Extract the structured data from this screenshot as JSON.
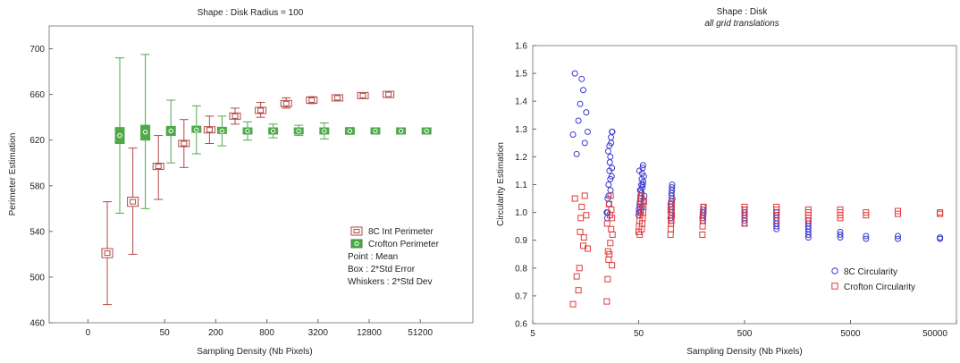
{
  "chart_data": [
    {
      "type": "boxplot",
      "title": "Shape : Disk Radius = 100",
      "xlabel": "Sampling Density (Nb Pixels)",
      "ylabel": "Perimeter Estimation",
      "x_tick_labels": [
        "0",
        "50",
        "200",
        "800",
        "3200",
        "12800",
        "51200"
      ],
      "y_ticks": [
        460,
        500,
        540,
        580,
        620,
        660,
        700
      ],
      "ylim": [
        460,
        720
      ],
      "grid": false,
      "legend_position": "bottom-right",
      "colors": {
        "8C Int Perimeter": "#b04a45",
        "Crofton Perimeter": "#4fa84a"
      },
      "series": [
        {
          "name": "8C Int Perimeter",
          "marker": "square",
          "points": [
            {
              "x": 12.5,
              "mean": 521,
              "se_low": 517,
              "se_high": 525,
              "sd_low": 476,
              "sd_high": 566
            },
            {
              "x": 25,
              "mean": 566,
              "se_low": 562,
              "se_high": 570,
              "sd_low": 520,
              "sd_high": 613
            },
            {
              "x": 50,
              "mean": 597,
              "se_low": 595,
              "se_high": 599,
              "sd_low": 568,
              "sd_high": 624
            },
            {
              "x": 100,
              "mean": 617,
              "se_low": 615,
              "se_high": 619,
              "sd_low": 596,
              "sd_high": 638
            },
            {
              "x": 200,
              "mean": 629,
              "se_low": 627,
              "se_high": 631,
              "sd_low": 617,
              "sd_high": 641
            },
            {
              "x": 400,
              "mean": 641,
              "se_low": 639,
              "se_high": 643,
              "sd_low": 634,
              "sd_high": 648
            },
            {
              "x": 800,
              "mean": 646,
              "se_low": 644,
              "se_high": 648,
              "sd_low": 640,
              "sd_high": 653
            },
            {
              "x": 1600,
              "mean": 652,
              "se_low": 650,
              "se_high": 654,
              "sd_low": 648,
              "sd_high": 657
            },
            {
              "x": 3200,
              "mean": 655,
              "se_low": 654,
              "se_high": 656,
              "sd_low": 652,
              "sd_high": 658
            },
            {
              "x": 6400,
              "mean": 657,
              "se_low": 656,
              "se_high": 658,
              "sd_low": 655,
              "sd_high": 659
            },
            {
              "x": 12800,
              "mean": 659,
              "se_low": 658,
              "se_high": 660,
              "sd_low": 657,
              "sd_high": 660
            },
            {
              "x": 25600,
              "mean": 660,
              "se_low": 659,
              "se_high": 661,
              "sd_low": 659,
              "sd_high": 661
            }
          ]
        },
        {
          "name": "Crofton Perimeter",
          "marker": "circle",
          "points": [
            {
              "x": 12.5,
              "mean": 624,
              "se_low": 617,
              "se_high": 631,
              "sd_low": 556,
              "sd_high": 692
            },
            {
              "x": 25,
              "mean": 627,
              "se_low": 620,
              "se_high": 633,
              "sd_low": 560,
              "sd_high": 695
            },
            {
              "x": 50,
              "mean": 628,
              "se_low": 624,
              "se_high": 632,
              "sd_low": 600,
              "sd_high": 655
            },
            {
              "x": 100,
              "mean": 629,
              "se_low": 627,
              "se_high": 632,
              "sd_low": 608,
              "sd_high": 650
            },
            {
              "x": 200,
              "mean": 628,
              "se_low": 627,
              "se_high": 630,
              "sd_low": 615,
              "sd_high": 641
            },
            {
              "x": 400,
              "mean": 628,
              "se_low": 627,
              "se_high": 629,
              "sd_low": 620,
              "sd_high": 636
            },
            {
              "x": 800,
              "mean": 628,
              "se_low": 627,
              "se_high": 629,
              "sd_low": 622,
              "sd_high": 634
            },
            {
              "x": 1600,
              "mean": 628,
              "se_low": 627,
              "se_high": 629,
              "sd_low": 624,
              "sd_high": 633
            },
            {
              "x": 3200,
              "mean": 628,
              "se_low": 627,
              "se_high": 629,
              "sd_low": 621,
              "sd_high": 635
            },
            {
              "x": 6400,
              "mean": 628,
              "se_low": 627,
              "se_high": 629,
              "sd_low": 625,
              "sd_high": 631
            },
            {
              "x": 12800,
              "mean": 628,
              "se_low": 627.5,
              "se_high": 628.5,
              "sd_low": 626,
              "sd_high": 630
            },
            {
              "x": 25600,
              "mean": 628,
              "se_low": 627.5,
              "se_high": 628.5,
              "sd_low": 627,
              "sd_high": 629
            },
            {
              "x": 51200,
              "mean": 628,
              "se_low": 627.5,
              "se_high": 628.5,
              "sd_low": 627,
              "sd_high": 629
            }
          ]
        }
      ],
      "legend_notes": [
        "Point : Mean",
        "Box : 2*Std Error",
        "Whiskers : 2*Std Dev"
      ]
    },
    {
      "type": "scatter",
      "title": "Shape : Disk",
      "subtitle": "all grid translations",
      "xlabel": "Sampling Density (Nb Pixels)",
      "ylabel": "Circularity Estimation",
      "x_scale": "log",
      "x_ticks": [
        5,
        50,
        500,
        5000,
        50000
      ],
      "xlim": [
        5,
        50000
      ],
      "y_ticks": [
        0.6,
        0.7,
        0.8,
        0.9,
        1.0,
        1.1,
        1.2,
        1.3,
        1.4,
        1.5,
        1.6
      ],
      "ylim": [
        0.6,
        1.6
      ],
      "grid": false,
      "legend_position": "bottom-right",
      "colors": {
        "8C Circularity": "#3a3ad0",
        "Crofton Circularity": "#e03a3a"
      },
      "series": [
        {
          "name": "8C Circularity",
          "marker": "circle",
          "points": [
            [
              12,
              1.28
            ],
            [
              12.5,
              1.5
            ],
            [
              13,
              1.21
            ],
            [
              13.5,
              1.33
            ],
            [
              14,
              1.39
            ],
            [
              14.5,
              1.48
            ],
            [
              15,
              1.44
            ],
            [
              15.5,
              1.25
            ],
            [
              16,
              1.36
            ],
            [
              16.5,
              1.29
            ],
            [
              25,
              1.0
            ],
            [
              25.5,
              1.05
            ],
            [
              26,
              1.1
            ],
            [
              26.5,
              1.15
            ],
            [
              27,
              1.2
            ],
            [
              27.5,
              1.25
            ],
            [
              28,
              1.29
            ],
            [
              25.3,
              0.98
            ],
            [
              26.2,
              1.03
            ],
            [
              27.1,
              1.08
            ],
            [
              27.8,
              1.13
            ],
            [
              26.7,
              1.18
            ],
            [
              25.8,
              1.22
            ],
            [
              27.4,
              1.27
            ],
            [
              28.2,
              1.29
            ],
            [
              26,
              1.06
            ],
            [
              27,
              1.12
            ],
            [
              28,
              1.16
            ],
            [
              25.5,
              1.0
            ],
            [
              26.5,
              1.24
            ],
            [
              50,
              0.99
            ],
            [
              50.5,
              1.0
            ],
            [
              51,
              1.02
            ],
            [
              51.5,
              1.04
            ],
            [
              52,
              1.06
            ],
            [
              52.5,
              1.08
            ],
            [
              53,
              1.1
            ],
            [
              53.5,
              1.12
            ],
            [
              54,
              1.14
            ],
            [
              54.5,
              1.16
            ],
            [
              55,
              1.17
            ],
            [
              50.3,
              1.01
            ],
            [
              51.2,
              1.03
            ],
            [
              52.1,
              1.05
            ],
            [
              53.2,
              1.07
            ],
            [
              54.1,
              1.09
            ],
            [
              55.2,
              1.11
            ],
            [
              56,
              1.13
            ],
            [
              50.8,
              1.15
            ],
            [
              52.4,
              1.0
            ],
            [
              53.8,
              1.02
            ],
            [
              55.5,
              1.04
            ],
            [
              56.5,
              1.06
            ],
            [
              51.6,
              1.08
            ],
            [
              54.6,
              1.1
            ],
            [
              100,
              0.98
            ],
            [
              100.5,
              1.0
            ],
            [
              101,
              1.02
            ],
            [
              101.5,
              1.04
            ],
            [
              102,
              1.06
            ],
            [
              103,
              1.08
            ],
            [
              103.5,
              1.1
            ],
            [
              101.3,
              0.99
            ],
            [
              102.6,
              1.01
            ],
            [
              100.2,
              1.03
            ],
            [
              104,
              1.05
            ],
            [
              102.3,
              1.07
            ],
            [
              101.8,
              0.97
            ],
            [
              103.2,
              1.09
            ],
            [
              200,
              0.98
            ],
            [
              201,
              0.99
            ],
            [
              202,
              1.0
            ],
            [
              203,
              1.01
            ],
            [
              204,
              1.02
            ],
            [
              205,
              1.0
            ],
            [
              201.5,
              0.97
            ],
            [
              203.5,
              0.99
            ],
            [
              500,
              0.96
            ],
            [
              500,
              0.97
            ],
            [
              500,
              0.98
            ],
            [
              500,
              0.99
            ],
            [
              500,
              1.0
            ],
            [
              500,
              1.01
            ],
            [
              1000,
              0.94
            ],
            [
              1000,
              0.95
            ],
            [
              1000,
              0.96
            ],
            [
              1000,
              0.97
            ],
            [
              1000,
              0.98
            ],
            [
              1000,
              0.99
            ],
            [
              1000,
              1.0
            ],
            [
              2000,
              0.91
            ],
            [
              2000,
              0.92
            ],
            [
              2000,
              0.93
            ],
            [
              2000,
              0.94
            ],
            [
              2000,
              0.95
            ],
            [
              2000,
              0.96
            ],
            [
              2000,
              0.97
            ],
            [
              4000,
              0.91
            ],
            [
              4000,
              0.92
            ],
            [
              4000,
              0.93
            ],
            [
              7000,
              0.905
            ],
            [
              7000,
              0.915
            ],
            [
              14000,
              0.905
            ],
            [
              14000,
              0.915
            ],
            [
              35000,
              0.905
            ],
            [
              35000,
              0.91
            ]
          ]
        },
        {
          "name": "Crofton Circularity",
          "marker": "square",
          "points": [
            [
              12,
              0.67
            ],
            [
              12.5,
              1.05
            ],
            [
              13,
              0.77
            ],
            [
              13.5,
              0.72
            ],
            [
              14,
              0.93
            ],
            [
              14.5,
              1.02
            ],
            [
              15,
              0.88
            ],
            [
              15.5,
              1.06
            ],
            [
              16,
              0.99
            ],
            [
              16.5,
              0.87
            ],
            [
              13.8,
              0.8
            ],
            [
              15.2,
              0.91
            ],
            [
              14.2,
              0.98
            ],
            [
              25,
              0.68
            ],
            [
              25.5,
              0.76
            ],
            [
              26,
              0.83
            ],
            [
              26.5,
              0.85
            ],
            [
              27,
              0.89
            ],
            [
              27.5,
              0.94
            ],
            [
              28,
              0.98
            ],
            [
              26.3,
              1.03
            ],
            [
              27.2,
              1.06
            ],
            [
              25.7,
              0.86
            ],
            [
              28.3,
              0.92
            ],
            [
              26.8,
              0.99
            ],
            [
              27.6,
              1.01
            ],
            [
              25.2,
              0.96
            ],
            [
              28,
              0.81
            ],
            [
              50,
              0.93
            ],
            [
              50.5,
              0.95
            ],
            [
              51,
              0.97
            ],
            [
              51.5,
              0.99
            ],
            [
              52,
              1.01
            ],
            [
              52.5,
              1.03
            ],
            [
              53,
              1.05
            ],
            [
              53.5,
              0.94
            ],
            [
              54,
              0.96
            ],
            [
              54.5,
              0.98
            ],
            [
              55,
              1.0
            ],
            [
              55.5,
              1.02
            ],
            [
              56,
              1.04
            ],
            [
              51.2,
              0.92
            ],
            [
              52.8,
              1.06
            ],
            [
              100,
              0.92
            ],
            [
              100.5,
              0.94
            ],
            [
              101,
              0.96
            ],
            [
              101.5,
              0.98
            ],
            [
              102,
              1.0
            ],
            [
              102.5,
              1.02
            ],
            [
              103,
              1.04
            ],
            [
              101.8,
              0.97
            ],
            [
              102.8,
              0.99
            ],
            [
              100.3,
              1.01
            ],
            [
              200,
              0.92
            ],
            [
              201,
              0.95
            ],
            [
              202,
              0.97
            ],
            [
              203,
              0.99
            ],
            [
              204,
              1.01
            ],
            [
              205,
              1.02
            ],
            [
              202.5,
              0.98
            ],
            [
              500,
              0.96
            ],
            [
              500,
              0.98
            ],
            [
              500,
              1.0
            ],
            [
              500,
              1.01
            ],
            [
              500,
              1.02
            ],
            [
              1000,
              0.97
            ],
            [
              1000,
              0.99
            ],
            [
              1000,
              1.0
            ],
            [
              1000,
              1.01
            ],
            [
              1000,
              1.02
            ],
            [
              2000,
              0.97
            ],
            [
              2000,
              0.98
            ],
            [
              2000,
              0.99
            ],
            [
              2000,
              1.0
            ],
            [
              2000,
              1.01
            ],
            [
              4000,
              0.98
            ],
            [
              4000,
              0.99
            ],
            [
              4000,
              1.0
            ],
            [
              4000,
              1.01
            ],
            [
              7000,
              0.99
            ],
            [
              7000,
              1.0
            ],
            [
              14000,
              0.995
            ],
            [
              14000,
              1.005
            ],
            [
              35000,
              0.995
            ],
            [
              35000,
              1.0
            ]
          ]
        }
      ]
    }
  ]
}
